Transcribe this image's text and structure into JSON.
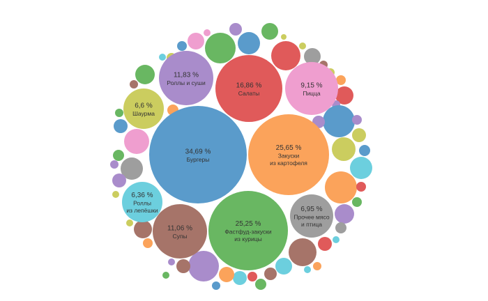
{
  "chart_data": {
    "type": "bubble",
    "bubbles": [
      {
        "value": "34,69 %",
        "label": [
          "Бургеры"
        ],
        "color": "#5a9bcb"
      },
      {
        "value": "25,65 %",
        "label": [
          "Закуски",
          "из картофеля"
        ],
        "color": "#fba35b"
      },
      {
        "value": "25,25 %",
        "label": [
          "Фастфуд-закуски",
          "из курицы"
        ],
        "color": "#69b762"
      },
      {
        "value": "16,86 %",
        "label": [
          "Салаты"
        ],
        "color": "#e05a5a"
      },
      {
        "value": "11,83 %",
        "label": [
          "Роллы и суши"
        ],
        "color": "#a98ccb"
      },
      {
        "value": "11,06 %",
        "label": [
          "Супы"
        ],
        "color": "#a67469"
      },
      {
        "value": "9,15 %",
        "label": [
          "Пицца"
        ],
        "color": "#ef9ecf"
      },
      {
        "value": "6,95 %",
        "label": [
          "Прочее мясо",
          "и птица"
        ],
        "color": "#9e9e9e"
      },
      {
        "value": "6,6 %",
        "label": [
          "Шаурма"
        ],
        "color": "#cbcd5f"
      },
      {
        "value": "6,36 %",
        "label": [
          "Роллы",
          "из лепёшки"
        ],
        "color": "#6ccfde"
      }
    ],
    "palette": [
      "#5a9bcb",
      "#fba35b",
      "#69b762",
      "#e05a5a",
      "#a98ccb",
      "#a67469",
      "#ef9ecf",
      "#9e9e9e",
      "#cbcd5f",
      "#6ccfde"
    ]
  }
}
